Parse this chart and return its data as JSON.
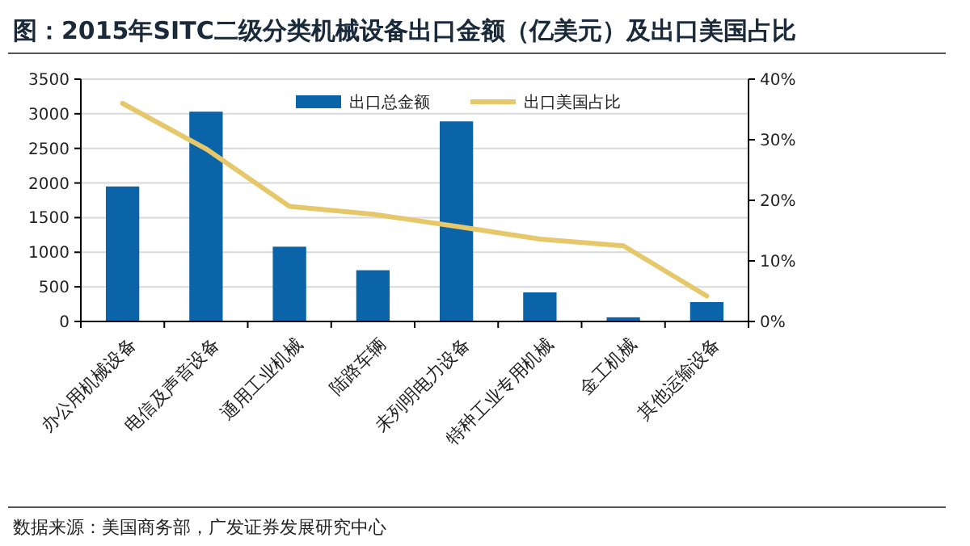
{
  "chart_data": {
    "type": "bar",
    "title": "图：2015年SITC二级分类机械设备出口金额（亿美元）及出口美国占比",
    "categories": [
      "办公用机械设备",
      "电信及声音设备",
      "通用工业机械",
      "陆路车辆",
      "未列明电力设备",
      "特种工业专用机械",
      "金工机械",
      "其他运输设备"
    ],
    "series": [
      {
        "name": "出口总金额",
        "type": "bar",
        "color": "#0b64a8",
        "values": [
          1950,
          3030,
          1080,
          740,
          2890,
          420,
          60,
          280
        ]
      },
      {
        "name": "出口美国占比",
        "type": "line",
        "axis": "y2",
        "color": "#e6c86a",
        "values": [
          36,
          28.5,
          19,
          17.7,
          15.7,
          13.6,
          12.5,
          4.2
        ]
      }
    ],
    "ylim": [
      0,
      3500
    ],
    "yticks": [
      0,
      500,
      1000,
      1500,
      2000,
      2500,
      3000,
      3500
    ],
    "y2lim": [
      0,
      40
    ],
    "y2ticks": [
      {
        "value": 0,
        "label": "0%"
      },
      {
        "value": 10,
        "label": "10%"
      },
      {
        "value": 20,
        "label": "20%"
      },
      {
        "value": 30,
        "label": "30%"
      },
      {
        "value": 40,
        "label": "40%"
      }
    ],
    "grid": "y",
    "legend": "top",
    "marker": "none",
    "annotations": [
      "数据来源：美国商务部，广发证券发展研究中心"
    ]
  }
}
